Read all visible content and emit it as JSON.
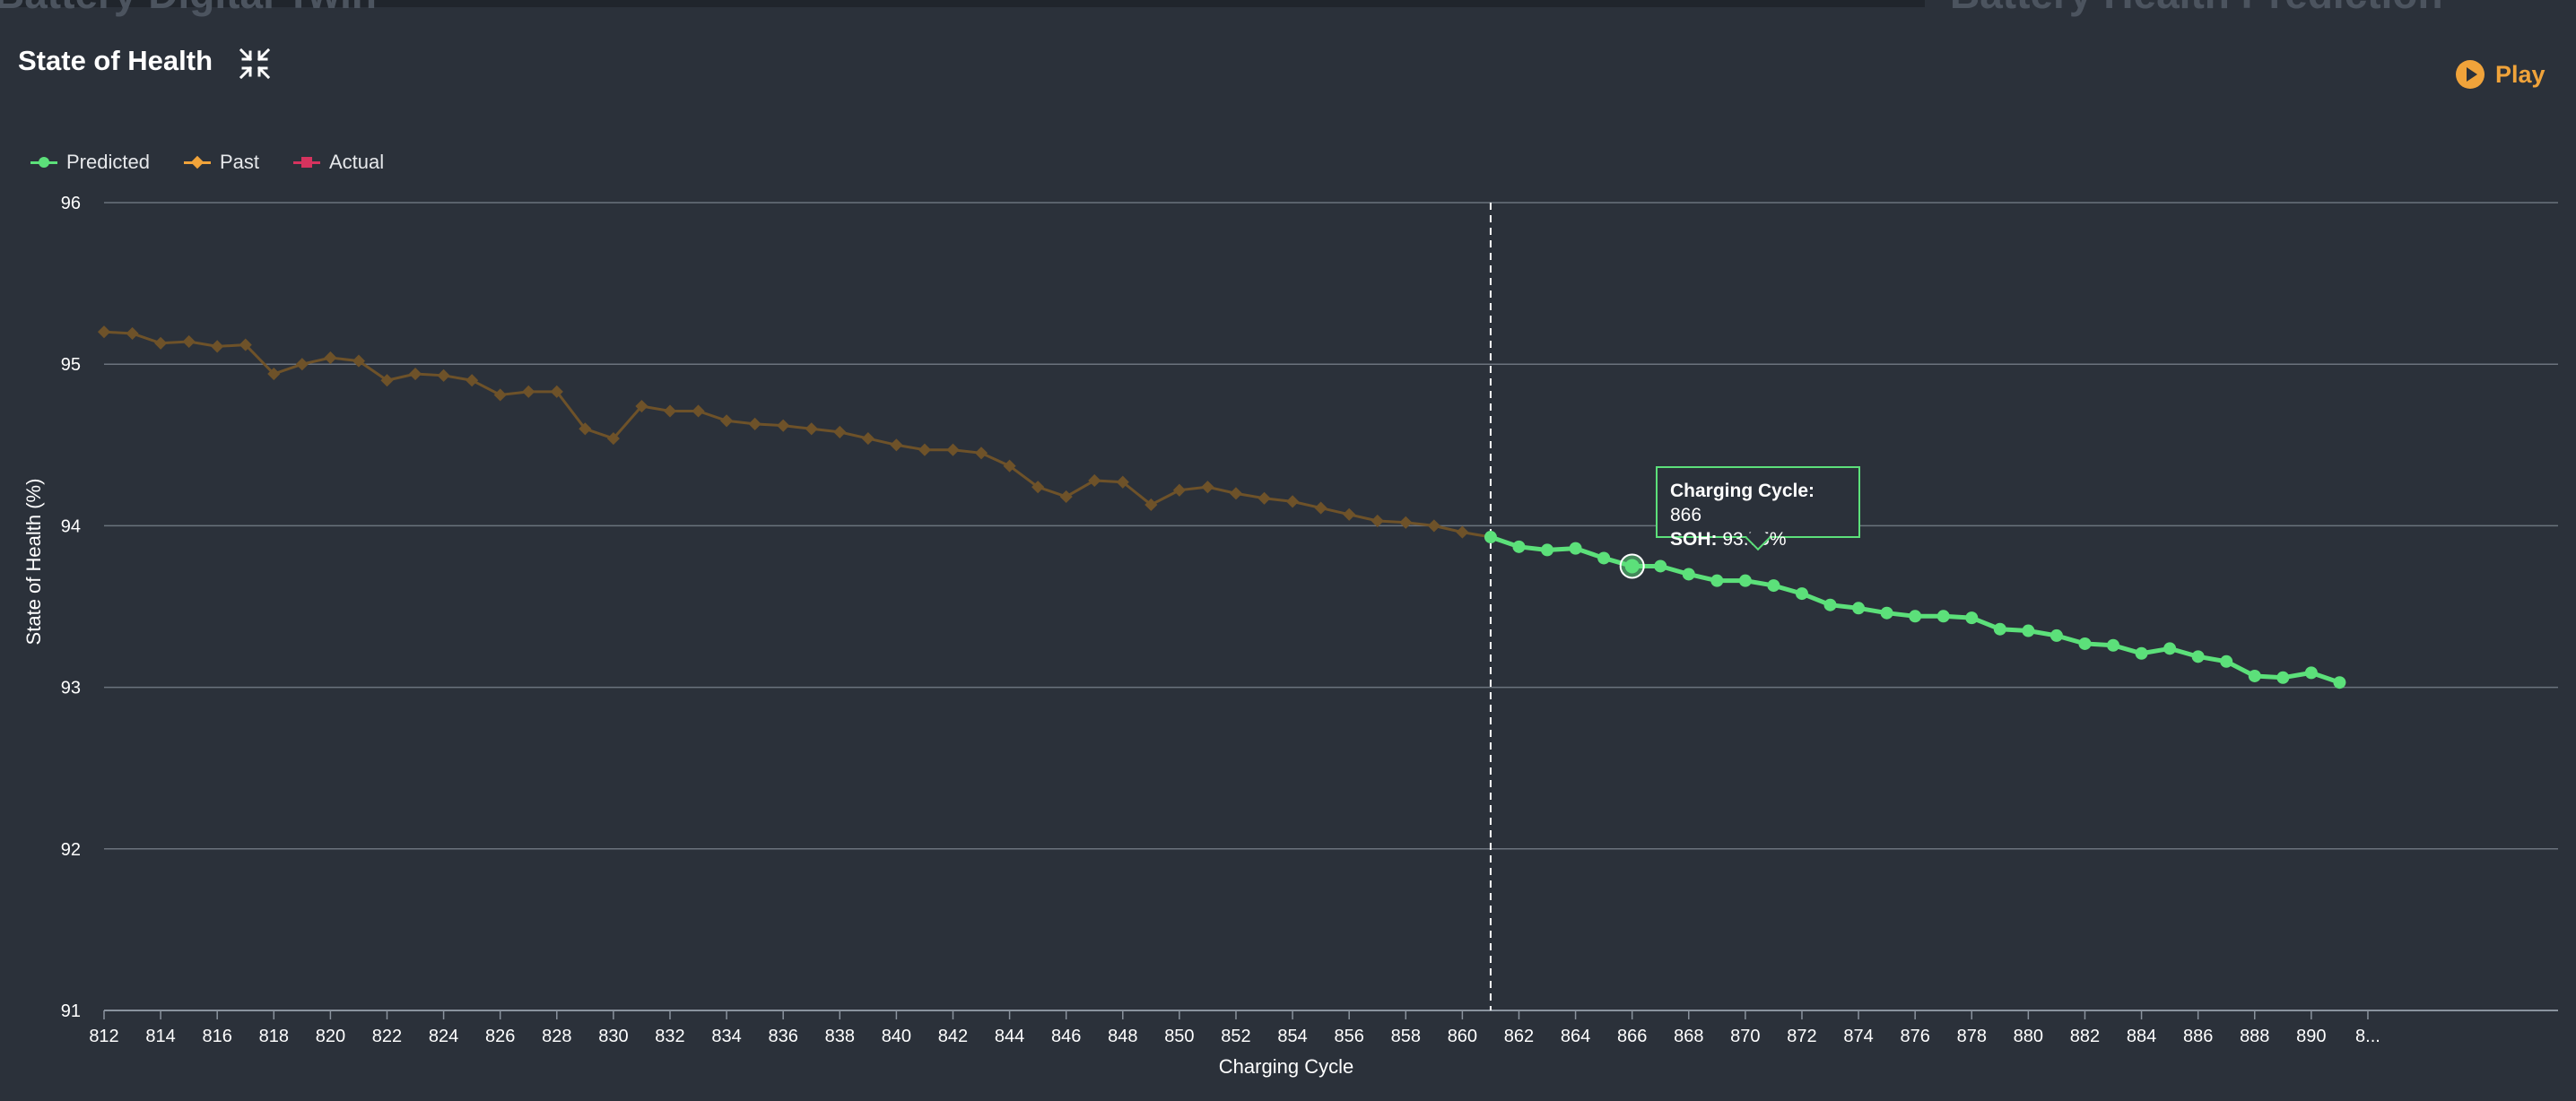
{
  "background_header": {
    "left_title": "Battery Digital Twin",
    "right_title": "Battery Health Prediction"
  },
  "panel": {
    "title": "State of Health",
    "collapse_icon": "collapse-arrows-icon",
    "play_label": "Play",
    "play_icon": "play-circle-icon"
  },
  "legend": [
    {
      "label": "Predicted",
      "color": "#5ce07a",
      "marker": "circle"
    },
    {
      "label": "Past",
      "color": "#f0a33a",
      "marker": "diamond"
    },
    {
      "label": "Actual",
      "color": "#d6335e",
      "marker": "square"
    }
  ],
  "tooltip": {
    "cycle_label": "Charging Cycle:",
    "cycle_value": "866",
    "soh_label": "SOH:",
    "soh_value": "93.75%"
  },
  "chart_data": {
    "type": "line",
    "xlabel": "Charging Cycle",
    "ylabel": "State of Health (%)",
    "xlim": [
      812,
      892
    ],
    "ylim": [
      91,
      96
    ],
    "yticks": [
      91,
      92,
      93,
      94,
      95,
      96
    ],
    "xticks": [
      "812",
      "814",
      "816",
      "818",
      "820",
      "822",
      "824",
      "826",
      "828",
      "830",
      "832",
      "834",
      "836",
      "838",
      "840",
      "842",
      "844",
      "846",
      "848",
      "850",
      "852",
      "854",
      "856",
      "858",
      "860",
      "862",
      "864",
      "866",
      "868",
      "870",
      "872",
      "874",
      "876",
      "878",
      "880",
      "882",
      "884",
      "886",
      "888",
      "890",
      "8..."
    ],
    "prediction_start": 861,
    "highlight": {
      "x": 866,
      "y": 93.75
    },
    "series": [
      {
        "name": "Past",
        "color": "#f0a33a",
        "x": [
          812,
          813,
          814,
          815,
          816,
          817,
          818,
          819,
          820,
          821,
          822,
          823,
          824,
          825,
          826,
          827,
          828,
          829,
          830,
          831,
          832,
          833,
          834,
          835,
          836,
          837,
          838,
          839,
          840,
          841,
          842,
          843,
          844,
          845,
          846,
          847,
          848,
          849,
          850,
          851,
          852,
          853,
          854,
          855,
          856,
          857,
          858,
          859,
          860,
          861
        ],
        "y": [
          95.2,
          95.19,
          95.13,
          95.14,
          95.11,
          95.12,
          94.94,
          95.0,
          95.04,
          95.02,
          94.9,
          94.94,
          94.93,
          94.9,
          94.81,
          94.83,
          94.83,
          94.6,
          94.54,
          94.74,
          94.71,
          94.71,
          94.65,
          94.63,
          94.62,
          94.6,
          94.58,
          94.54,
          94.5,
          94.47,
          94.47,
          94.45,
          94.37,
          94.24,
          94.18,
          94.28,
          94.27,
          94.13,
          94.22,
          94.24,
          94.2,
          94.17,
          94.15,
          94.11,
          94.07,
          94.03,
          94.02,
          94.0,
          93.96,
          93.93
        ]
      },
      {
        "name": "Predicted",
        "color": "#5ce07a",
        "x": [
          861,
          862,
          863,
          864,
          865,
          866,
          867,
          868,
          869,
          870,
          871,
          872,
          873,
          874,
          875,
          876,
          877,
          878,
          879,
          880,
          881,
          882,
          883,
          884,
          885,
          886,
          887,
          888,
          889,
          890,
          891
        ],
        "y": [
          93.93,
          93.87,
          93.85,
          93.86,
          93.8,
          93.75,
          93.75,
          93.7,
          93.66,
          93.66,
          93.63,
          93.58,
          93.51,
          93.49,
          93.46,
          93.44,
          93.44,
          93.43,
          93.36,
          93.35,
          93.32,
          93.27,
          93.26,
          93.21,
          93.24,
          93.19,
          93.16,
          93.07,
          93.06,
          93.09,
          93.03
        ]
      },
      {
        "name": "Actual",
        "color": "#d6335e",
        "x": [],
        "y": []
      }
    ]
  }
}
